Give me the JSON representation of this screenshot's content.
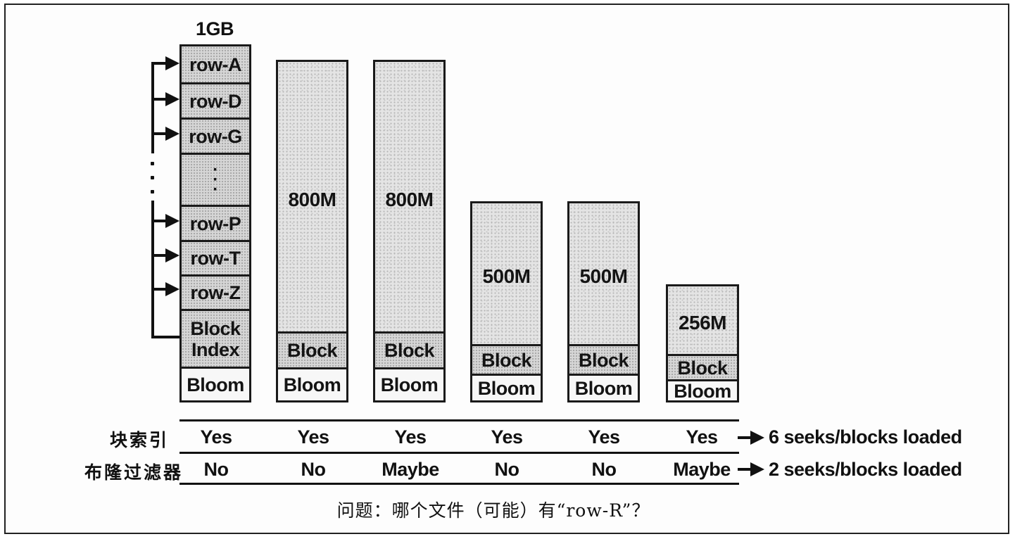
{
  "diagram": {
    "file1": {
      "size_label": "1GB",
      "rows": [
        "row-A",
        "row-D",
        "row-G",
        "row-P",
        "row-T",
        "row-Z"
      ],
      "block_index": "Block\nIndex",
      "bloom": "Bloom"
    },
    "files": [
      {
        "size": "800M",
        "block": "Block",
        "bloom": "Bloom"
      },
      {
        "size": "800M",
        "block": "Block",
        "bloom": "Bloom"
      },
      {
        "size": "500M",
        "block": "Block",
        "bloom": "Bloom"
      },
      {
        "size": "500M",
        "block": "Block",
        "bloom": "Bloom"
      },
      {
        "size": "256M",
        "block": "Block",
        "bloom": "Bloom"
      }
    ]
  },
  "table": {
    "rows": [
      {
        "label": "块索引",
        "values": [
          "Yes",
          "Yes",
          "Yes",
          "Yes",
          "Yes",
          "Yes"
        ],
        "result": "6 seeks/blocks loaded"
      },
      {
        "label": "布隆过滤器",
        "values": [
          "No",
          "No",
          "Maybe",
          "No",
          "No",
          "Maybe"
        ],
        "result": "2 seeks/blocks loaded"
      }
    ]
  },
  "question": "问题：哪个文件（可能）有“row-R”？"
}
